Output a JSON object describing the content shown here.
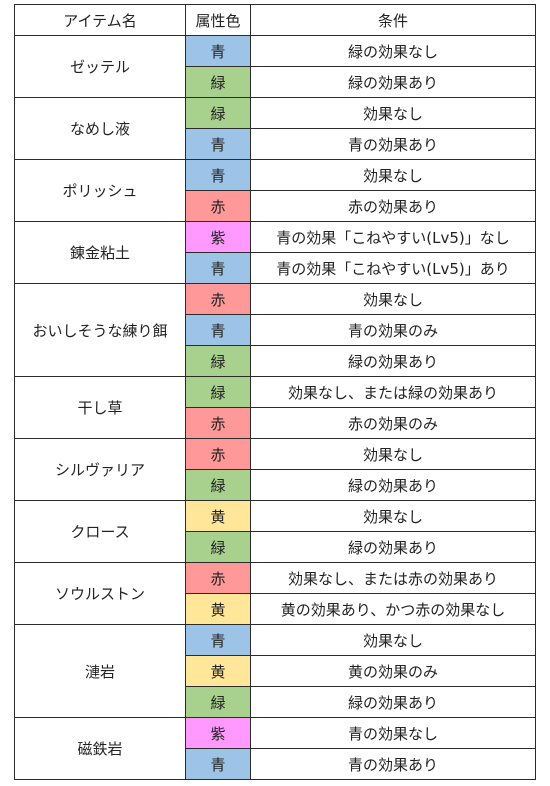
{
  "header": {
    "name": "アイテム名",
    "color": "属性色",
    "condition": "条件"
  },
  "colors": {
    "青": "#9dc3e6",
    "緑": "#a9d18e",
    "赤": "#ff9999",
    "紫": "#ff99ff",
    "黄": "#ffe699"
  },
  "items": [
    {
      "name": "ゼッテル",
      "rows": [
        {
          "color": "青",
          "condition": "緑の効果なし"
        },
        {
          "color": "緑",
          "condition": "緑の効果あり"
        }
      ]
    },
    {
      "name": "なめし液",
      "rows": [
        {
          "color": "緑",
          "condition": "効果なし"
        },
        {
          "color": "青",
          "condition": "青の効果あり"
        }
      ]
    },
    {
      "name": "ポリッシュ",
      "rows": [
        {
          "color": "青",
          "condition": "効果なし"
        },
        {
          "color": "赤",
          "condition": "赤の効果あり"
        }
      ]
    },
    {
      "name": "錬金粘土",
      "rows": [
        {
          "color": "紫",
          "condition": "青の効果「こねやすい(Lv5)」なし"
        },
        {
          "color": "青",
          "condition": "青の効果「こねやすい(Lv5)」あり"
        }
      ]
    },
    {
      "name": "おいしそうな練り餌",
      "rows": [
        {
          "color": "赤",
          "condition": "効果なし"
        },
        {
          "color": "青",
          "condition": "青の効果のみ"
        },
        {
          "color": "緑",
          "condition": "緑の効果あり"
        }
      ]
    },
    {
      "name": "干し草",
      "rows": [
        {
          "color": "緑",
          "condition": "効果なし、または緑の効果あり"
        },
        {
          "color": "赤",
          "condition": "赤の効果のみ"
        }
      ]
    },
    {
      "name": "シルヴァリア",
      "rows": [
        {
          "color": "赤",
          "condition": "効果なし"
        },
        {
          "color": "緑",
          "condition": "緑の効果あり"
        }
      ]
    },
    {
      "name": "クロース",
      "rows": [
        {
          "color": "黄",
          "condition": "効果なし"
        },
        {
          "color": "緑",
          "condition": "緑の効果あり"
        }
      ]
    },
    {
      "name": "ソウルストン",
      "rows": [
        {
          "color": "赤",
          "condition": "効果なし、または赤の効果あり"
        },
        {
          "color": "黄",
          "condition": "黄の効果あり、かつ赤の効果なし"
        }
      ]
    },
    {
      "name": "漣岩",
      "rows": [
        {
          "color": "青",
          "condition": "効果なし"
        },
        {
          "color": "黄",
          "condition": "黄の効果のみ"
        },
        {
          "color": "緑",
          "condition": "緑の効果あり"
        }
      ]
    },
    {
      "name": "磁鉄岩",
      "rows": [
        {
          "color": "紫",
          "condition": "青の効果なし"
        },
        {
          "color": "青",
          "condition": "青の効果あり"
        }
      ]
    }
  ]
}
